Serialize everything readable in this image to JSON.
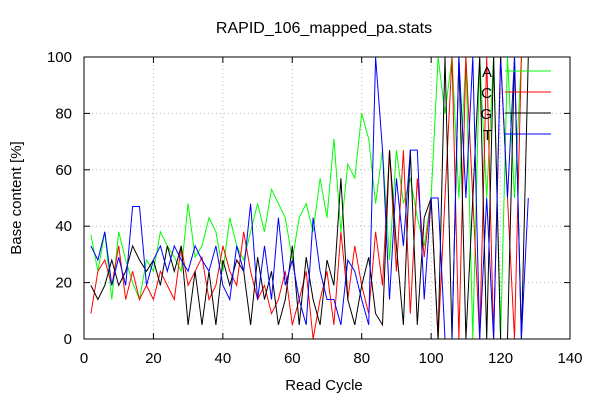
{
  "chart_data": {
    "type": "line",
    "title": "RAPID_106_mapped_pa.stats",
    "xlabel": "Read Cycle",
    "ylabel": "Base content [%]",
    "xlim": [
      0,
      140
    ],
    "ylim": [
      0,
      100
    ],
    "xticks": [
      0,
      20,
      40,
      60,
      80,
      100,
      120,
      140
    ],
    "yticks": [
      0,
      20,
      40,
      60,
      80,
      100
    ],
    "grid": true,
    "legend_position": "top-right",
    "x": [
      2,
      4,
      6,
      8,
      10,
      12,
      14,
      16,
      18,
      20,
      22,
      24,
      26,
      28,
      30,
      32,
      34,
      36,
      38,
      40,
      42,
      44,
      46,
      48,
      50,
      52,
      54,
      56,
      58,
      60,
      62,
      64,
      66,
      68,
      70,
      72,
      74,
      76,
      78,
      80,
      82,
      84,
      86,
      88,
      90,
      92,
      94,
      96,
      98,
      100,
      102,
      104,
      106,
      108,
      110,
      112,
      114,
      116,
      118,
      120,
      122,
      124,
      126,
      128
    ],
    "series": [
      {
        "name": "A",
        "color": "#00ff00",
        "values": [
          37,
          24,
          38,
          14,
          38,
          28,
          20,
          14,
          28,
          24,
          38,
          33,
          29,
          24,
          48,
          29,
          33,
          43,
          38,
          24,
          43,
          33,
          28,
          38,
          48,
          38,
          53,
          48,
          43,
          28,
          43,
          48,
          38,
          57,
          43,
          71,
          38,
          62,
          57,
          80,
          71,
          48,
          67,
          28,
          67,
          48,
          57,
          43,
          33,
          50,
          100,
          80,
          100,
          50,
          100,
          0,
          100,
          50,
          100,
          0,
          100,
          50,
          100,
          100
        ]
      },
      {
        "name": "C",
        "color": "#ff0000",
        "values": [
          9,
          24,
          28,
          19,
          33,
          14,
          24,
          14,
          19,
          14,
          24,
          19,
          14,
          33,
          19,
          24,
          29,
          14,
          19,
          33,
          24,
          19,
          38,
          24,
          14,
          19,
          9,
          14,
          24,
          5,
          14,
          24,
          0,
          14,
          24,
          5,
          38,
          14,
          33,
          19,
          9,
          38,
          19,
          67,
          24,
          67,
          9,
          57,
          29,
          50,
          0,
          50,
          100,
          0,
          100,
          50,
          0,
          100,
          0,
          100,
          50,
          0,
          100,
          100
        ]
      },
      {
        "name": "G",
        "color": "#000000",
        "values": [
          19,
          14,
          19,
          28,
          19,
          24,
          33,
          28,
          24,
          28,
          19,
          33,
          24,
          33,
          5,
          24,
          5,
          24,
          5,
          28,
          19,
          28,
          24,
          5,
          29,
          14,
          24,
          5,
          14,
          33,
          5,
          29,
          14,
          5,
          28,
          19,
          57,
          14,
          5,
          19,
          29,
          9,
          5,
          67,
          33,
          5,
          67,
          5,
          43,
          50,
          0,
          100,
          0,
          100,
          0,
          50,
          100,
          0,
          100,
          0,
          0,
          100,
          0,
          100
        ]
      },
      {
        "name": "T",
        "color": "#0000ff",
        "values": [
          33,
          28,
          38,
          19,
          29,
          19,
          47,
          47,
          19,
          28,
          33,
          24,
          33,
          28,
          24,
          33,
          28,
          24,
          33,
          19,
          14,
          33,
          24,
          48,
          14,
          33,
          14,
          43,
          19,
          28,
          14,
          5,
          43,
          24,
          14,
          14,
          5,
          28,
          24,
          14,
          5,
          100,
          67,
          14,
          57,
          33,
          67,
          67,
          14,
          50,
          50,
          0,
          0,
          100,
          50,
          100,
          0,
          50,
          0,
          100,
          50,
          100,
          0,
          50
        ]
      }
    ]
  }
}
